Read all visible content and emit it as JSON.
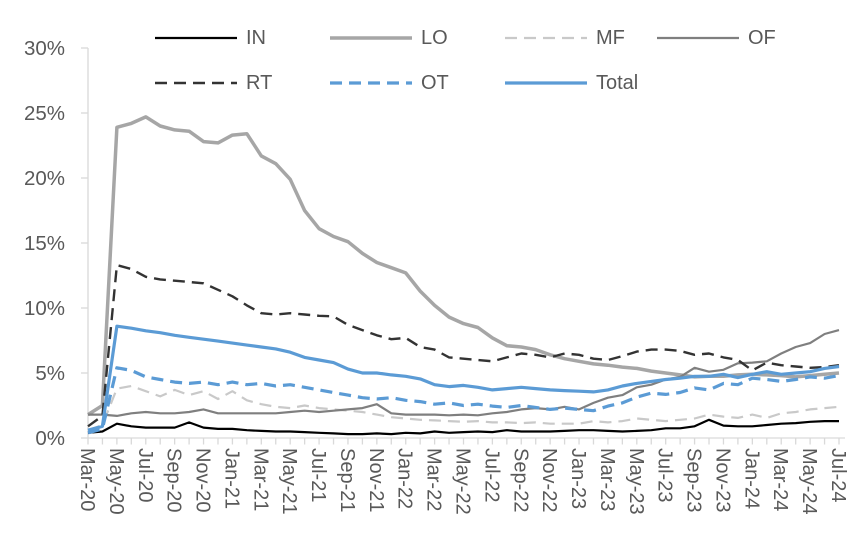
{
  "chart_data": {
    "type": "line",
    "title": "",
    "xlabel": "",
    "ylabel": "",
    "grid": false,
    "legend_position": "top",
    "axis_color": "#D9D9D9",
    "tick_label_color": "#595959",
    "y_axis": {
      "min": 0,
      "max": 30,
      "step": 5,
      "tick_labels": [
        "0%",
        "5%",
        "10%",
        "15%",
        "20%",
        "25%",
        "30%"
      ]
    },
    "x_label_interval": 2,
    "x": [
      "Mar-20",
      "Apr-20",
      "May-20",
      "Jun-20",
      "Jul-20",
      "Aug-20",
      "Sep-20",
      "Oct-20",
      "Nov-20",
      "Dec-20",
      "Jan-21",
      "Feb-21",
      "Mar-21",
      "Apr-21",
      "May-21",
      "Jun-21",
      "Jul-21",
      "Aug-21",
      "Sep-21",
      "Oct-21",
      "Nov-21",
      "Dec-21",
      "Jan-22",
      "Feb-22",
      "Mar-22",
      "Apr-22",
      "May-22",
      "Jun-22",
      "Jul-22",
      "Aug-22",
      "Sep-22",
      "Oct-22",
      "Nov-22",
      "Dec-22",
      "Jan-23",
      "Feb-23",
      "Mar-23",
      "Apr-23",
      "May-23",
      "Jun-23",
      "Jul-23",
      "Aug-23",
      "Sep-23",
      "Oct-23",
      "Nov-23",
      "Dec-23",
      "Jan-24",
      "Feb-24",
      "Mar-24",
      "Apr-24",
      "May-24",
      "Jun-24",
      "Jul-24"
    ],
    "legend_rows": [
      [
        "IN",
        "LO",
        "MF",
        "OF"
      ],
      [
        "RT",
        "OT",
        "Total"
      ]
    ],
    "series": [
      {
        "name": "IN",
        "color": "#000000",
        "style": "solid",
        "width": 2.2,
        "values": [
          0.4,
          0.5,
          1.1,
          0.9,
          0.8,
          0.8,
          0.8,
          1.2,
          0.8,
          0.7,
          0.7,
          0.6,
          0.55,
          0.5,
          0.5,
          0.45,
          0.4,
          0.35,
          0.3,
          0.3,
          0.35,
          0.3,
          0.4,
          0.35,
          0.5,
          0.4,
          0.45,
          0.5,
          0.45,
          0.6,
          0.5,
          0.5,
          0.5,
          0.55,
          0.6,
          0.6,
          0.55,
          0.5,
          0.55,
          0.6,
          0.75,
          0.75,
          0.9,
          1.4,
          0.95,
          0.9,
          0.9,
          1.0,
          1.1,
          1.15,
          1.25,
          1.3,
          1.3
        ]
      },
      {
        "name": "LO",
        "color": "#A6A6A6",
        "style": "solid",
        "width": 3.5,
        "values": [
          1.8,
          2.5,
          23.9,
          24.2,
          24.7,
          24.0,
          23.7,
          23.6,
          22.8,
          22.7,
          23.3,
          23.4,
          21.7,
          21.1,
          19.9,
          17.5,
          16.1,
          15.5,
          15.1,
          14.2,
          13.5,
          13.1,
          12.7,
          11.3,
          10.2,
          9.3,
          8.8,
          8.5,
          7.7,
          7.1,
          7.0,
          6.8,
          6.4,
          6.1,
          5.9,
          5.7,
          5.6,
          5.45,
          5.35,
          5.15,
          5.0,
          4.85,
          4.7,
          4.75,
          4.75,
          4.85,
          4.9,
          4.85,
          4.8,
          4.7,
          4.8,
          4.9,
          5.0
        ]
      },
      {
        "name": "MF",
        "color": "#C9C9C9",
        "style": "dashed",
        "width": 2.2,
        "values": [
          0.6,
          1.0,
          3.8,
          4.0,
          3.6,
          3.2,
          3.7,
          3.3,
          3.6,
          3.0,
          3.6,
          2.9,
          2.6,
          2.4,
          2.3,
          2.5,
          2.3,
          2.2,
          2.1,
          2.0,
          1.8,
          1.6,
          1.5,
          1.4,
          1.35,
          1.3,
          1.25,
          1.3,
          1.2,
          1.2,
          1.15,
          1.2,
          1.1,
          1.1,
          1.1,
          1.3,
          1.2,
          1.3,
          1.5,
          1.4,
          1.3,
          1.4,
          1.5,
          1.8,
          1.65,
          1.55,
          1.8,
          1.55,
          1.9,
          2.0,
          2.2,
          2.3,
          2.4
        ]
      },
      {
        "name": "OF",
        "color": "#7F7F7F",
        "style": "solid",
        "width": 2.2,
        "values": [
          1.8,
          1.8,
          1.7,
          1.9,
          2.0,
          1.9,
          1.9,
          2.0,
          2.2,
          1.9,
          1.9,
          1.9,
          1.9,
          1.9,
          2.0,
          2.1,
          2.0,
          2.1,
          2.2,
          2.3,
          2.6,
          1.9,
          1.8,
          1.8,
          1.8,
          1.75,
          1.8,
          1.75,
          1.9,
          2.0,
          2.2,
          2.3,
          2.2,
          2.4,
          2.2,
          2.7,
          3.1,
          3.3,
          3.9,
          4.1,
          4.5,
          4.7,
          5.4,
          5.1,
          5.25,
          5.75,
          5.8,
          5.9,
          6.5,
          7.0,
          7.3,
          8.0,
          8.3
        ]
      },
      {
        "name": "RT",
        "color": "#333333",
        "style": "dashed",
        "width": 2.4,
        "values": [
          0.9,
          1.7,
          13.3,
          13.0,
          12.4,
          12.2,
          12.1,
          12.0,
          11.9,
          11.4,
          10.9,
          10.2,
          9.6,
          9.5,
          9.6,
          9.5,
          9.4,
          9.35,
          8.7,
          8.3,
          7.9,
          7.6,
          7.7,
          7.0,
          6.8,
          6.2,
          6.1,
          6.0,
          5.9,
          6.2,
          6.5,
          6.4,
          6.2,
          6.5,
          6.4,
          6.1,
          6.0,
          6.3,
          6.65,
          6.8,
          6.8,
          6.7,
          6.4,
          6.5,
          6.2,
          6.0,
          5.2,
          5.8,
          5.6,
          5.5,
          5.4,
          5.45,
          5.6
        ]
      },
      {
        "name": "OT",
        "color": "#5B9BD5",
        "style": "dashed",
        "width": 3.2,
        "values": [
          0.4,
          0.7,
          5.4,
          5.2,
          4.7,
          4.5,
          4.3,
          4.2,
          4.3,
          4.1,
          4.3,
          4.1,
          4.2,
          4.0,
          4.1,
          3.9,
          3.7,
          3.5,
          3.3,
          3.1,
          3.0,
          3.1,
          2.9,
          2.8,
          2.6,
          2.7,
          2.5,
          2.6,
          2.45,
          2.35,
          2.5,
          2.35,
          2.2,
          2.3,
          2.2,
          2.1,
          2.45,
          2.7,
          3.15,
          3.45,
          3.35,
          3.5,
          3.85,
          3.7,
          4.2,
          4.1,
          4.6,
          4.5,
          4.35,
          4.5,
          4.7,
          4.6,
          4.8
        ]
      },
      {
        "name": "Total",
        "color": "#5B9BD5",
        "style": "solid",
        "width": 3.2,
        "values": [
          0.6,
          0.9,
          8.6,
          8.45,
          8.25,
          8.1,
          7.9,
          7.75,
          7.6,
          7.45,
          7.3,
          7.15,
          7.0,
          6.85,
          6.6,
          6.2,
          6.0,
          5.8,
          5.3,
          5.0,
          5.0,
          4.85,
          4.75,
          4.55,
          4.1,
          3.95,
          4.05,
          3.9,
          3.7,
          3.8,
          3.9,
          3.8,
          3.7,
          3.65,
          3.6,
          3.55,
          3.7,
          4.0,
          4.2,
          4.35,
          4.5,
          4.6,
          4.75,
          4.75,
          4.9,
          4.65,
          4.9,
          5.1,
          4.9,
          5.0,
          5.1,
          5.35,
          5.5
        ]
      }
    ]
  }
}
